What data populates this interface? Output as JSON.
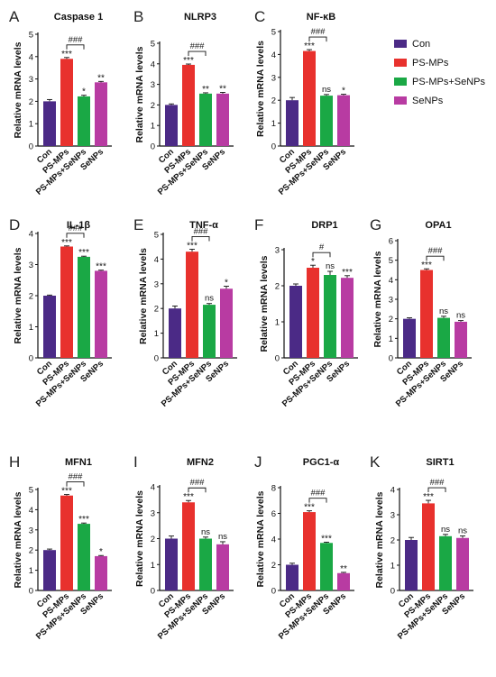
{
  "colors": {
    "Con": "#4b2a86",
    "PS-MPs": "#e8312d",
    "PS-MPs+SeNPs": "#1aa845",
    "SeNPs": "#b83ba2"
  },
  "legend": [
    {
      "label": "Con",
      "color": "#4b2a86"
    },
    {
      "label": "PS-MPs",
      "color": "#e8312d"
    },
    {
      "label": "PS-MPs+SeNPs",
      "color": "#1aa845"
    },
    {
      "label": "SeNPs",
      "color": "#b83ba2"
    }
  ],
  "chart_data": [
    {
      "type": "bar",
      "letter": "A",
      "title": "Caspase 1",
      "ylabel": "Relative mRNA levels",
      "categories": [
        "Con",
        "PS-MPs",
        "PS-MPs+SeNPs",
        "SeNPs"
      ],
      "values": [
        2.0,
        3.9,
        2.22,
        2.85
      ],
      "errors": [
        0.08,
        0.06,
        0.05,
        0.04
      ],
      "ylim": [
        0,
        5
      ],
      "yticks": [
        0,
        1,
        2,
        3,
        4,
        5
      ],
      "significance": [
        "",
        "***",
        "*",
        "**"
      ],
      "bracket": "###"
    },
    {
      "type": "bar",
      "letter": "B",
      "title": "NLRP3",
      "ylabel": "Relative mRNA levels",
      "categories": [
        "Con",
        "PS-MPs",
        "PS-MPs+SeNPs",
        "SeNPs"
      ],
      "values": [
        2.0,
        3.95,
        2.55,
        2.55
      ],
      "errors": [
        0.05,
        0.04,
        0.04,
        0.06
      ],
      "ylim": [
        0,
        5
      ],
      "yticks": [
        0,
        1,
        2,
        3,
        4,
        5
      ],
      "significance": [
        "",
        "***",
        "**",
        "**"
      ],
      "bracket": "###"
    },
    {
      "type": "bar",
      "letter": "C",
      "title": "NF-κB",
      "ylabel": "Relative mRNA levels",
      "categories": [
        "Con",
        "PS-MPs",
        "PS-MPs+SeNPs",
        "SeNPs"
      ],
      "values": [
        2.0,
        4.15,
        2.2,
        2.22
      ],
      "errors": [
        0.12,
        0.06,
        0.05,
        0.04
      ],
      "ylim": [
        0,
        5
      ],
      "yticks": [
        0,
        1,
        2,
        3,
        4,
        5
      ],
      "significance": [
        "",
        "***",
        "ns",
        "*"
      ],
      "bracket": "###"
    },
    {
      "type": "bar",
      "letter": "D",
      "title": "IL-1β",
      "ylabel": "Relative mRNA levels",
      "categories": [
        "Con",
        "PS-MPs",
        "PS-MPs+SeNPs",
        "SeNPs"
      ],
      "values": [
        2.0,
        3.58,
        3.25,
        2.8
      ],
      "errors": [
        0.02,
        0.02,
        0.02,
        0.02
      ],
      "ylim": [
        0,
        4
      ],
      "yticks": [
        0,
        1,
        2,
        3,
        4
      ],
      "significance": [
        "",
        "***",
        "***",
        "***"
      ],
      "bracket": "###"
    },
    {
      "type": "bar",
      "letter": "E",
      "title": "TNF-α",
      "ylabel": "Relative mRNA levels",
      "categories": [
        "Con",
        "PS-MPs",
        "PS-MPs+SeNPs",
        "SeNPs"
      ],
      "values": [
        2.0,
        4.3,
        2.15,
        2.8
      ],
      "errors": [
        0.1,
        0.1,
        0.05,
        0.1
      ],
      "ylim": [
        0,
        5
      ],
      "yticks": [
        0,
        1,
        2,
        3,
        4,
        5
      ],
      "significance": [
        "",
        "***",
        "ns",
        "*"
      ],
      "bracket": "###"
    },
    {
      "type": "bar",
      "letter": "F",
      "title": "DRP1",
      "ylabel": "Relative mRNA levels",
      "categories": [
        "Con",
        "PS-MPs",
        "PS-MPs+SeNPs",
        "SeNPs"
      ],
      "values": [
        2.0,
        2.5,
        2.3,
        2.22
      ],
      "errors": [
        0.05,
        0.07,
        0.1,
        0.06
      ],
      "ylim": [
        0,
        3
      ],
      "yticks": [
        0,
        1,
        2,
        3
      ],
      "significance": [
        "",
        "*",
        "ns",
        "***"
      ],
      "bracket": "#"
    },
    {
      "type": "bar",
      "letter": "G",
      "title": "OPA1",
      "ylabel": "Relative mRNA levels",
      "categories": [
        "Con",
        "PS-MPs",
        "PS-MPs+SeNPs",
        "SeNPs"
      ],
      "values": [
        2.0,
        4.5,
        2.05,
        1.85
      ],
      "errors": [
        0.05,
        0.06,
        0.08,
        0.06
      ],
      "ylim": [
        0,
        6
      ],
      "yticks": [
        0,
        1,
        2,
        3,
        4,
        5,
        6
      ],
      "significance": [
        "",
        "***",
        "ns",
        "ns"
      ],
      "bracket": "###"
    },
    {
      "type": "bar",
      "letter": "H",
      "title": "MFN1",
      "ylabel": "Relative mRNA levels",
      "categories": [
        "Con",
        "PS-MPs",
        "PS-MPs+SeNPs",
        "SeNPs"
      ],
      "values": [
        2.0,
        4.7,
        3.3,
        1.7
      ],
      "errors": [
        0.05,
        0.05,
        0.04,
        0.03
      ],
      "ylim": [
        0,
        5
      ],
      "yticks": [
        0,
        1,
        2,
        3,
        4,
        5
      ],
      "significance": [
        "",
        "***",
        "***",
        "*"
      ],
      "bracket": "###"
    },
    {
      "type": "bar",
      "letter": "I",
      "title": "MFN2",
      "ylabel": "Relative mRNA levels",
      "categories": [
        "Con",
        "PS-MPs",
        "PS-MPs+SeNPs",
        "SeNPs"
      ],
      "values": [
        2.0,
        3.4,
        2.0,
        1.78
      ],
      "errors": [
        0.1,
        0.07,
        0.06,
        0.1
      ],
      "ylim": [
        0,
        4
      ],
      "yticks": [
        0,
        1,
        2,
        3,
        4
      ],
      "significance": [
        "",
        "***",
        "ns",
        "ns"
      ],
      "bracket": "###"
    },
    {
      "type": "bar",
      "letter": "J",
      "title": "PGC1-α",
      "ylabel": "Relative mRNA levels",
      "categories": [
        "Con",
        "PS-MPs",
        "PS-MPs+SeNPs",
        "SeNPs"
      ],
      "values": [
        2.0,
        6.1,
        3.7,
        1.35
      ],
      "errors": [
        0.12,
        0.1,
        0.06,
        0.06
      ],
      "ylim": [
        0,
        8
      ],
      "yticks": [
        0,
        2,
        4,
        6,
        8
      ],
      "significance": [
        "",
        "***",
        "***",
        "**"
      ],
      "bracket": "###"
    },
    {
      "type": "bar",
      "letter": "K",
      "title": "SIRT1",
      "ylabel": "Relative mRNA levels",
      "categories": [
        "Con",
        "PS-MPs",
        "PS-MPs+SeNPs",
        "SeNPs"
      ],
      "values": [
        2.0,
        3.45,
        2.15,
        2.08
      ],
      "errors": [
        0.1,
        0.12,
        0.07,
        0.08
      ],
      "ylim": [
        0,
        4
      ],
      "yticks": [
        0,
        1,
        2,
        3,
        4
      ],
      "significance": [
        "",
        "***",
        "ns",
        "ns"
      ],
      "bracket": "###"
    }
  ]
}
